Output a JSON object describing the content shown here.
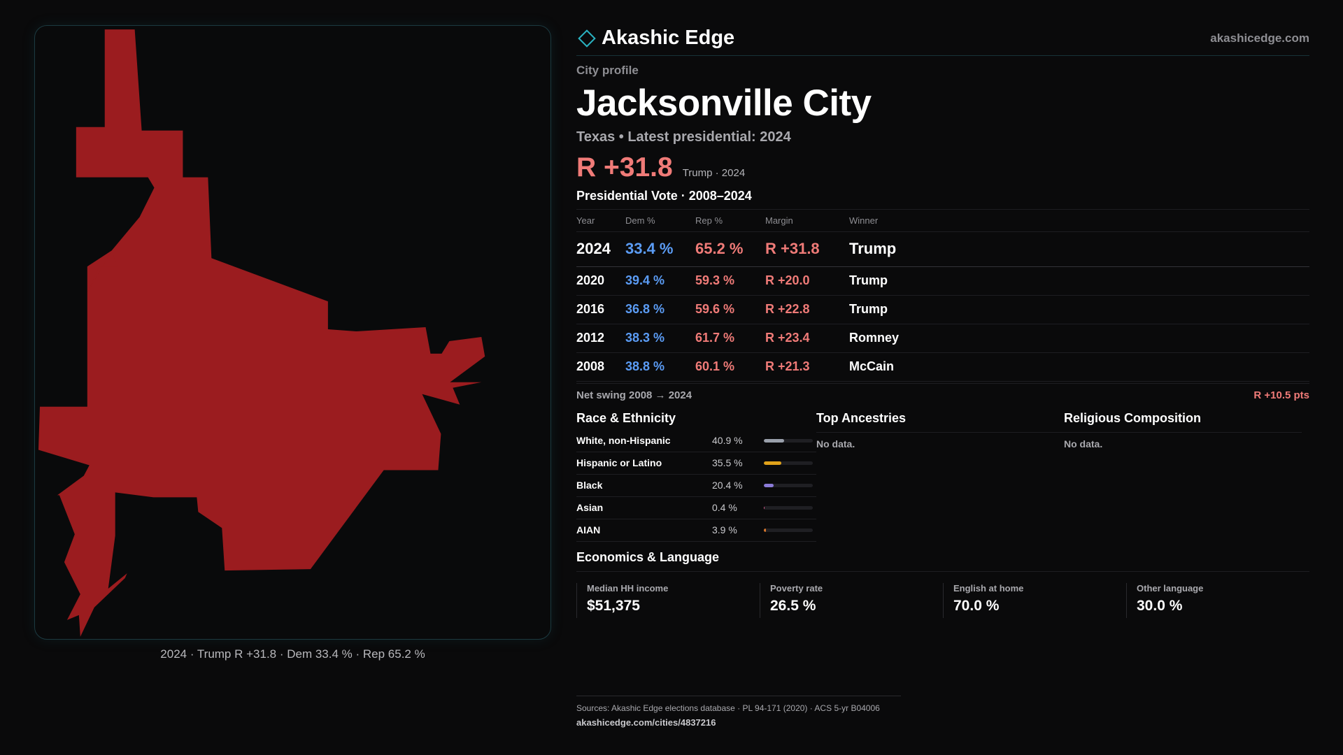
{
  "brand": {
    "name": "Akashic Edge",
    "site": "akashicedge.com",
    "accent": "#2ab3c2"
  },
  "profile": {
    "eyebrow": "City profile",
    "title": "Jacksonville City",
    "subtitle": "Texas • Latest presidential: 2024",
    "headline_margin": "R +31.8",
    "headline_sub": "Trump · 2024"
  },
  "map": {
    "caption": "2024 · Trump R +31.8 · Dem 33.4 % · Rep 65.2 %",
    "fill_color": "#9b1c1f"
  },
  "vote": {
    "title": "Presidential Vote · 2008–2024",
    "headers": {
      "year": "Year",
      "dem": "Dem %",
      "rep": "Rep %",
      "margin": "Margin",
      "winner": "Winner"
    },
    "rows": [
      {
        "year": "2024",
        "dem": "33.4 %",
        "rep": "65.2 %",
        "margin": "R +31.8",
        "winner": "Trump"
      },
      {
        "year": "2020",
        "dem": "39.4 %",
        "rep": "59.3 %",
        "margin": "R +20.0",
        "winner": "Trump"
      },
      {
        "year": "2016",
        "dem": "36.8 %",
        "rep": "59.6 %",
        "margin": "R +22.8",
        "winner": "Trump"
      },
      {
        "year": "2012",
        "dem": "38.3 %",
        "rep": "61.7 %",
        "margin": "R +23.4",
        "winner": "Romney"
      },
      {
        "year": "2008",
        "dem": "38.8 %",
        "rep": "60.1 %",
        "margin": "R +21.3",
        "winner": "McCain"
      }
    ],
    "swing_label": "Net swing 2008 → 2024",
    "swing_value": "R +10.5 pts",
    "dem_color": "#5b9cf5",
    "rep_color": "#f07b78"
  },
  "race": {
    "title": "Race & Ethnicity",
    "rows": [
      {
        "name": "White, non-Hispanic",
        "pct": "40.9 %",
        "value": 40.9,
        "color": "#9aa0ab"
      },
      {
        "name": "Hispanic or Latino",
        "pct": "35.5 %",
        "value": 35.5,
        "color": "#e0a21a"
      },
      {
        "name": "Black",
        "pct": "20.4 %",
        "value": 20.4,
        "color": "#8b7bd8"
      },
      {
        "name": "Asian",
        "pct": "0.4 %",
        "value": 0.4,
        "color": "#d65b8a"
      },
      {
        "name": "AIAN",
        "pct": "3.9 %",
        "value": 3.9,
        "color": "#d9772b"
      }
    ]
  },
  "ancestries": {
    "title": "Top Ancestries",
    "empty": "No data."
  },
  "religion": {
    "title": "Religious Composition",
    "empty": "No data."
  },
  "economics": {
    "title": "Economics & Language",
    "cards": [
      {
        "label": "Median HH income",
        "value": "$51,375"
      },
      {
        "label": "Poverty rate",
        "value": "26.5 %"
      },
      {
        "label": "English at home",
        "value": "70.0 %"
      },
      {
        "label": "Other language",
        "value": "30.0 %"
      }
    ]
  },
  "sources": {
    "text": "Sources: Akashic Edge elections database · PL 94-171 (2020) · ACS 5-yr B04006",
    "url": "akashicedge.com/cities/4837216"
  }
}
